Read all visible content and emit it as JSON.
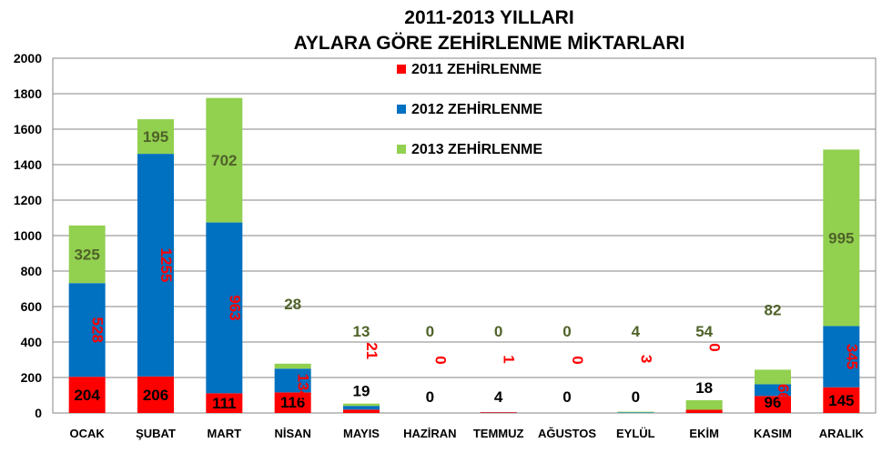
{
  "chart_data": {
    "type": "bar",
    "stacked": true,
    "title_lines": [
      "2011-2013 YILLARI",
      "AYLARA GÖRE ZEHİRLENME MİKTARLARI"
    ],
    "categories": [
      "OCAK",
      "ŞUBAT",
      "MART",
      "NİSAN",
      "MAYIS",
      "HAZİRAN",
      "TEMMUZ",
      "AĞUSTOS",
      "EYLÜL",
      "EKİM",
      "KASIM",
      "ARALIK"
    ],
    "ylim": [
      0,
      2000
    ],
    "yticks": [
      0,
      200,
      400,
      600,
      800,
      1000,
      1200,
      1400,
      1600,
      1800,
      2000
    ],
    "grid": true,
    "legend_position": "top-center",
    "series": [
      {
        "name": "2011 ZEHİRLENME",
        "color": "#ff0000",
        "label_color": "#000000",
        "values": [
          204,
          206,
          111,
          116,
          19,
          0,
          4,
          0,
          0,
          18,
          96,
          145
        ]
      },
      {
        "name": "2012 ZEHİRLENME",
        "color": "#0070c0",
        "label_color": "#ff0000",
        "values": [
          528,
          1255,
          963,
          134,
          21,
          0,
          1,
          0,
          3,
          0,
          66,
          345
        ]
      },
      {
        "name": "2013 ZEHİRLENME",
        "color": "#92d050",
        "label_color": "#4f6228",
        "values": [
          325,
          195,
          702,
          28,
          13,
          0,
          0,
          0,
          4,
          54,
          82,
          995
        ]
      }
    ]
  }
}
